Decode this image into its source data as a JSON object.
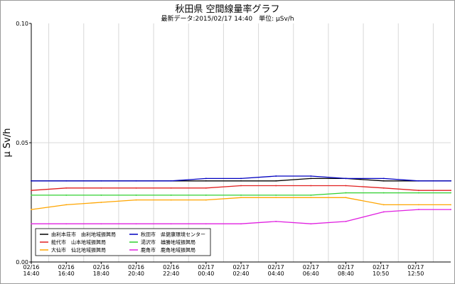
{
  "header": {
    "title": "秋田県 空間線量率グラフ",
    "subtitle": "最新データ:2015/02/17 14:40　単位: μSv/h"
  },
  "chart_data": {
    "type": "line",
    "title": "秋田県 空間線量率グラフ",
    "subtitle": "最新データ:2015/02/17 14:40　単位: μSv/h",
    "ylabel": "μ Sv/h",
    "xlabel": "",
    "ylim": [
      0,
      0.1
    ],
    "y_ticks": [
      "0.00",
      "0.05",
      "0.10"
    ],
    "grid": true,
    "legend_position": "bottom-left",
    "x_range": [
      "2015-02-16 14:40",
      "2015-02-17 14:40"
    ],
    "x_ticks": [
      {
        "date": "02/16",
        "time": "14:40"
      },
      {
        "date": "02/16",
        "time": "16:40"
      },
      {
        "date": "02/16",
        "time": "18:40"
      },
      {
        "date": "02/16",
        "time": "20:40"
      },
      {
        "date": "02/16",
        "time": "22:40"
      },
      {
        "date": "02/17",
        "time": "00:40"
      },
      {
        "date": "02/17",
        "time": "02:40"
      },
      {
        "date": "02/17",
        "time": "04:40"
      },
      {
        "date": "02/17",
        "time": "06:40"
      },
      {
        "date": "02/17",
        "time": "08:40"
      },
      {
        "date": "02/17",
        "time": "10:50"
      },
      {
        "date": "02/17",
        "time": "12:50"
      }
    ],
    "series": [
      {
        "name": "由利本荘市　由利地域振興局",
        "color": "#000000",
        "x": [
          "2015-02-16 14:40",
          "2015-02-16 16:40",
          "2015-02-16 18:40",
          "2015-02-16 20:40",
          "2015-02-16 22:40",
          "2015-02-17 00:40",
          "2015-02-17 02:40",
          "2015-02-17 04:40",
          "2015-02-17 06:40",
          "2015-02-17 08:40",
          "2015-02-17 10:50",
          "2015-02-17 12:50",
          "2015-02-17 14:40"
        ],
        "values": [
          0.034,
          0.034,
          0.034,
          0.034,
          0.034,
          0.034,
          0.034,
          0.034,
          0.035,
          0.035,
          0.034,
          0.034,
          0.034
        ]
      },
      {
        "name": "能代市　山本地域振興局",
        "color": "#e02020",
        "x": [
          "2015-02-16 14:40",
          "2015-02-16 16:40",
          "2015-02-16 18:40",
          "2015-02-16 20:40",
          "2015-02-16 22:40",
          "2015-02-17 00:40",
          "2015-02-17 02:40",
          "2015-02-17 04:40",
          "2015-02-17 06:40",
          "2015-02-17 08:40",
          "2015-02-17 10:50",
          "2015-02-17 12:50",
          "2015-02-17 14:40"
        ],
        "values": [
          0.03,
          0.031,
          0.031,
          0.031,
          0.031,
          0.031,
          0.032,
          0.032,
          0.032,
          0.032,
          0.031,
          0.03,
          0.03
        ]
      },
      {
        "name": "大仙市　仙北地域振興局",
        "color": "#ffa500",
        "x": [
          "2015-02-16 14:40",
          "2015-02-16 16:40",
          "2015-02-16 18:40",
          "2015-02-16 20:40",
          "2015-02-16 22:40",
          "2015-02-17 00:40",
          "2015-02-17 02:40",
          "2015-02-17 04:40",
          "2015-02-17 06:40",
          "2015-02-17 08:40",
          "2015-02-17 10:50",
          "2015-02-17 12:50",
          "2015-02-17 14:40"
        ],
        "values": [
          0.022,
          0.024,
          0.025,
          0.026,
          0.026,
          0.026,
          0.027,
          0.027,
          0.027,
          0.027,
          0.024,
          0.024,
          0.024
        ]
      },
      {
        "name": "秋田市　県健康環境センター",
        "color": "#0000c0",
        "x": [
          "2015-02-16 14:40",
          "2015-02-16 16:40",
          "2015-02-16 18:40",
          "2015-02-16 20:40",
          "2015-02-16 22:40",
          "2015-02-17 00:40",
          "2015-02-17 02:40",
          "2015-02-17 04:40",
          "2015-02-17 06:40",
          "2015-02-17 08:40",
          "2015-02-17 10:50",
          "2015-02-17 12:50",
          "2015-02-17 14:40"
        ],
        "values": [
          0.034,
          0.034,
          0.034,
          0.034,
          0.034,
          0.035,
          0.035,
          0.036,
          0.036,
          0.035,
          0.035,
          0.034,
          0.034
        ]
      },
      {
        "name": "湯沢市　雄勝地域振興局",
        "color": "#30d030",
        "x": [
          "2015-02-16 14:40",
          "2015-02-16 16:40",
          "2015-02-16 18:40",
          "2015-02-16 20:40",
          "2015-02-16 22:40",
          "2015-02-17 00:40",
          "2015-02-17 02:40",
          "2015-02-17 04:40",
          "2015-02-17 06:40",
          "2015-02-17 08:40",
          "2015-02-17 10:50",
          "2015-02-17 12:50",
          "2015-02-17 14:40"
        ],
        "values": [
          0.028,
          0.028,
          0.028,
          0.028,
          0.028,
          0.028,
          0.028,
          0.028,
          0.028,
          0.029,
          0.029,
          0.029,
          0.029
        ]
      },
      {
        "name": "鹿角市　鹿角地域振興局",
        "color": "#e020e0",
        "x": [
          "2015-02-16 14:40",
          "2015-02-16 16:40",
          "2015-02-16 18:40",
          "2015-02-16 20:40",
          "2015-02-16 22:40",
          "2015-02-17 00:40",
          "2015-02-17 02:40",
          "2015-02-17 04:40",
          "2015-02-17 06:40",
          "2015-02-17 08:40",
          "2015-02-17 10:50",
          "2015-02-17 12:50",
          "2015-02-17 14:40"
        ],
        "values": [
          0.016,
          0.016,
          0.016,
          0.016,
          0.016,
          0.016,
          0.016,
          0.017,
          0.016,
          0.017,
          0.021,
          0.022,
          0.022
        ]
      }
    ]
  }
}
